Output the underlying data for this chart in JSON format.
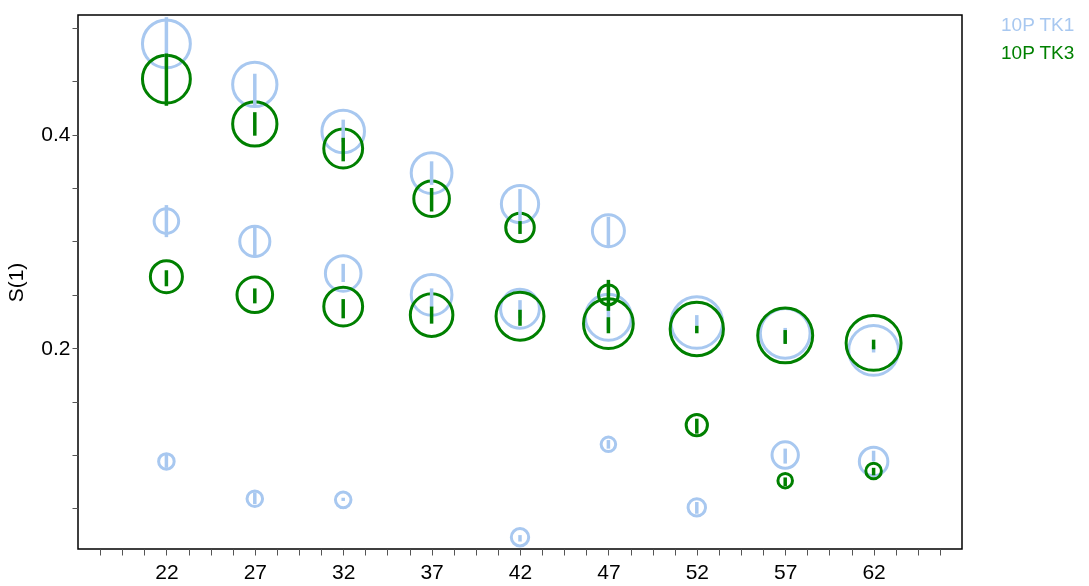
{
  "chart_data": {
    "type": "bubble",
    "ylabel": "S(1)",
    "xlim": [
      17,
      67
    ],
    "ylim": [
      0.012,
      0.512
    ],
    "xticks": [
      {
        "value": 18.25,
        "label": null
      },
      {
        "value": 19.5,
        "label": null
      },
      {
        "value": 20.75,
        "label": null
      },
      22,
      {
        "value": 23.25,
        "label": null
      },
      {
        "value": 24.5,
        "label": null
      },
      {
        "value": 25.75,
        "label": null
      },
      27,
      {
        "value": 28.25,
        "label": null
      },
      {
        "value": 29.5,
        "label": null
      },
      {
        "value": 30.75,
        "label": null
      },
      32,
      {
        "value": 33.25,
        "label": null
      },
      {
        "value": 34.5,
        "label": null
      },
      {
        "value": 35.75,
        "label": null
      },
      37,
      {
        "value": 38.25,
        "label": null
      },
      {
        "value": 39.5,
        "label": null
      },
      {
        "value": 40.75,
        "label": null
      },
      42,
      {
        "value": 43.25,
        "label": null
      },
      {
        "value": 44.5,
        "label": null
      },
      {
        "value": 45.75,
        "label": null
      },
      47,
      {
        "value": 48.25,
        "label": null
      },
      {
        "value": 49.5,
        "label": null
      },
      {
        "value": 50.75,
        "label": null
      },
      52,
      {
        "value": 53.25,
        "label": null
      },
      {
        "value": 54.5,
        "label": null
      },
      {
        "value": 55.75,
        "label": null
      },
      57,
      {
        "value": 58.25,
        "label": null
      },
      {
        "value": 59.5,
        "label": null
      },
      {
        "value": 60.75,
        "label": null
      },
      62,
      {
        "value": 63.25,
        "label": null
      },
      {
        "value": 64.5,
        "label": null
      },
      {
        "value": 65.75,
        "label": null
      }
    ],
    "yticks": [
      {
        "value": 0.05,
        "label": null
      },
      {
        "value": 0.1,
        "label": null
      },
      {
        "value": 0.15,
        "label": null
      },
      0.2,
      {
        "value": 0.25,
        "label": null
      },
      {
        "value": 0.3,
        "label": null
      },
      {
        "value": 0.35,
        "label": null
      },
      0.4,
      {
        "value": 0.45,
        "label": null
      },
      {
        "value": 0.5,
        "label": null
      }
    ],
    "grid": false,
    "legend": "top right",
    "marker": "circle",
    "series": [
      {
        "name": "10P TK1",
        "color": "#a8c8f0",
        "x": [
          22,
          22,
          22,
          27,
          27,
          27,
          32,
          32,
          32,
          37,
          37,
          42,
          42,
          42,
          47,
          47,
          47,
          52,
          52,
          57,
          57,
          62,
          62
        ],
        "values": [
          0.485,
          0.319,
          0.094,
          0.447,
          0.3,
          0.059,
          0.403,
          0.27,
          0.058,
          0.364,
          0.25,
          0.335,
          0.237,
          0.023,
          0.31,
          0.229,
          0.11,
          0.224,
          0.051,
          0.214,
          0.1,
          0.198,
          0.094
        ],
        "sizes": [
          0.76,
          0.2,
          0.08,
          0.65,
          0.3,
          0.08,
          0.6,
          0.42,
          0.08,
          0.55,
          0.55,
          0.46,
          0.5,
          0.1,
          0.34,
          0.7,
          0.07,
          0.88,
          0.1,
          0.82,
          0.23,
          0.82,
          0.27
        ],
        "errors": [
          [
            0.461,
            0.51
          ],
          [
            0.304,
            0.334
          ],
          [
            0.088,
            0.1
          ],
          [
            0.426,
            0.457
          ],
          [
            0.285,
            0.315
          ],
          [
            0.054,
            0.065
          ],
          [
            0.393,
            0.414
          ],
          [
            0.262,
            0.279
          ],
          [
            0.057,
            0.06
          ],
          [
            0.353,
            0.375
          ],
          [
            0.238,
            0.256
          ],
          [
            0.318,
            0.349
          ],
          [
            0.228,
            0.245
          ],
          [
            0.019,
            0.025
          ],
          [
            0.294,
            0.323
          ],
          [
            0.217,
            0.238
          ],
          [
            0.106,
            0.114
          ],
          [
            0.221,
            0.231
          ],
          [
            0.045,
            0.056
          ],
          [
            0.205,
            0.219
          ],
          [
            0.092,
            0.106
          ],
          [
            0.196,
            0.202
          ],
          [
            0.094,
            0.104
          ]
        ]
      },
      {
        "name": "10P TK3",
        "color": "#008000",
        "x": [
          22,
          22,
          27,
          27,
          32,
          32,
          37,
          37,
          42,
          42,
          47,
          47,
          52,
          52,
          57,
          57,
          62,
          62
        ],
        "values": [
          0.452,
          0.267,
          0.41,
          0.25,
          0.387,
          0.239,
          0.34,
          0.231,
          0.313,
          0.23,
          0.25,
          0.223,
          0.218,
          0.128,
          0.212,
          0.076,
          0.205,
          0.085
        ],
        "sizes": [
          0.76,
          0.34,
          0.65,
          0.42,
          0.5,
          0.5,
          0.42,
          0.6,
          0.27,
          0.76,
          0.13,
          0.82,
          0.94,
          0.15,
          1,
          0.07,
          1,
          0.08
        ],
        "errors": [
          [
            0.427,
            0.476
          ],
          [
            0.258,
            0.273
          ],
          [
            0.399,
            0.421
          ],
          [
            0.242,
            0.256
          ],
          [
            0.375,
            0.397
          ],
          [
            0.228,
            0.246
          ],
          [
            0.328,
            0.35
          ],
          [
            0.223,
            0.239
          ],
          [
            0.307,
            0.319
          ],
          [
            0.221,
            0.236
          ],
          [
            0.235,
            0.264
          ],
          [
            0.214,
            0.229
          ],
          [
            0.214,
            0.221
          ],
          [
            0.12,
            0.134
          ],
          [
            0.204,
            0.217
          ],
          [
            0.071,
            0.079
          ],
          [
            0.199,
            0.208
          ],
          [
            0.081,
            0.088
          ]
        ]
      }
    ]
  }
}
